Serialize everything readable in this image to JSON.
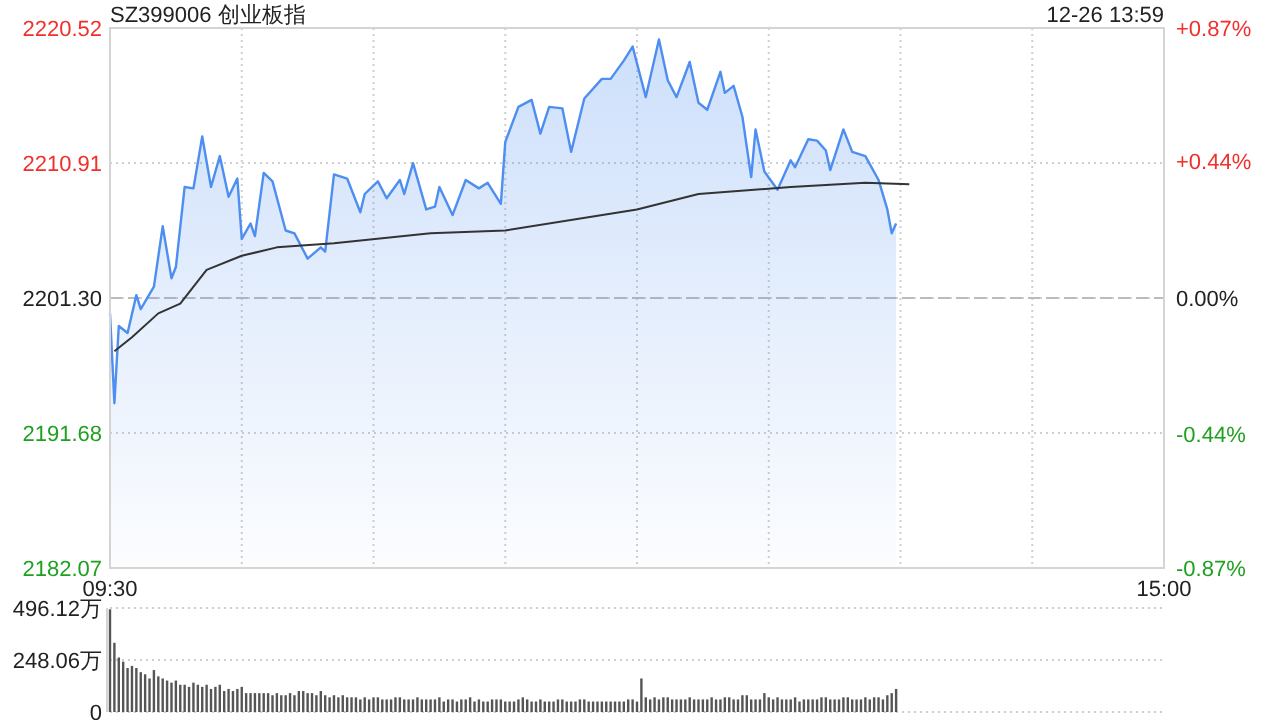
{
  "chart_data": [
    {
      "type": "area",
      "title": "SZ399006 创业板指",
      "annotations": [
        "12-26 13:59"
      ],
      "categories": [
        "09:30",
        null,
        null,
        null,
        null,
        null,
        null,
        null,
        null,
        null,
        null,
        null,
        null,
        null,
        null,
        null,
        null,
        null,
        null,
        null,
        null,
        null,
        null,
        null,
        null,
        null,
        null,
        null,
        null,
        null,
        null,
        null,
        null,
        null,
        null,
        null,
        null,
        null,
        null,
        null,
        null,
        null,
        null,
        null,
        null,
        null,
        null,
        null,
        null,
        null,
        null,
        null,
        null,
        null,
        null,
        null,
        null,
        null,
        null,
        null,
        null,
        null,
        null,
        null,
        null,
        null,
        null,
        null,
        null,
        null,
        null,
        null,
        null,
        null,
        null,
        null,
        null,
        null,
        null,
        null,
        null,
        null,
        null,
        null,
        null,
        null,
        null,
        null,
        null,
        null,
        null,
        null,
        null,
        null,
        null,
        null,
        null,
        null,
        null,
        null,
        null,
        null,
        null,
        null,
        null,
        null,
        null,
        null,
        null,
        null,
        null,
        null,
        null,
        null,
        null,
        null,
        null,
        null,
        null,
        null,
        null,
        null,
        null,
        null,
        null,
        null,
        null,
        null,
        null,
        null,
        null,
        null,
        null,
        null,
        null,
        null,
        null,
        null,
        null,
        null,
        null,
        null,
        null,
        null,
        null,
        null,
        null,
        null,
        null,
        null,
        null,
        null,
        null,
        null,
        null,
        null,
        null,
        null,
        null,
        null,
        null,
        null,
        null,
        null,
        null,
        null,
        null,
        null,
        null,
        null,
        null,
        null,
        null,
        null,
        null,
        null,
        null,
        null,
        null,
        null,
        null,
        null,
        null,
        null,
        null,
        null,
        null,
        null,
        null,
        null,
        null,
        null,
        null,
        null,
        null,
        null,
        null,
        null,
        null,
        null,
        null,
        null,
        null,
        null,
        null,
        null,
        null,
        null,
        null,
        null,
        null,
        null,
        null,
        null,
        null,
        null,
        null,
        null,
        null,
        null,
        null,
        null,
        null,
        null,
        null,
        null,
        null,
        null,
        null,
        null,
        null,
        null,
        null,
        null,
        null,
        null,
        null,
        null,
        null,
        null,
        "15:00"
      ],
      "ylim": [
        2182.07,
        2220.52
      ],
      "yticks": [
        2182.07,
        2191.68,
        {
          "value": 2201.3,
          "label": "2201.30"
        },
        2210.91,
        2220.52
      ],
      "y2lim": [
        -0.87,
        0.87
      ],
      "y2ticks": [
        {
          "value": -0.87,
          "label": "-0.87%"
        },
        {
          "value": -0.44,
          "label": "-0.44%"
        },
        {
          "value": 0,
          "label": "0.00%"
        },
        {
          "value": 0.44,
          "label": "+0.44%"
        },
        {
          "value": 0.87,
          "label": "+0.87%"
        }
      ],
      "grid": true,
      "ref_lines": [
        {
          "axis": "y",
          "value": 2201.3,
          "line_style": "dashed",
          "color": "#bbbbbb"
        }
      ],
      "series": [
        {
          "type": "area",
          "color": "#4d8ef0",
          "values": [
            2200.2,
            2193.8,
            2199.3,
            null,
            2198.8,
            null,
            2201.5,
            2200.5,
            null,
            null,
            2202.1,
            null,
            2206.4,
            null,
            2202.7,
            2203.5,
            null,
            2209.2,
            null,
            2209.1,
            null,
            2212.8,
            null,
            2209.2,
            null,
            2211.4,
            null,
            2208.5,
            null,
            2209.8,
            2205.5,
            null,
            2206.6,
            2205.7,
            null,
            2210.2,
            null,
            2209.6,
            null,
            null,
            2206.1,
            null,
            2205.9,
            null,
            null,
            2204.1,
            null,
            null,
            2204.9,
            2204.6,
            null,
            2210.1,
            null,
            null,
            2209.8,
            null,
            null,
            2207.4,
            2208.7,
            null,
            null,
            2209.6,
            null,
            2208.4,
            null,
            null,
            2209.7,
            2208.7,
            null,
            2210.9,
            null,
            null,
            2207.6,
            null,
            2207.8,
            2209.2,
            null,
            null,
            2207.2,
            null,
            null,
            2209.7,
            null,
            null,
            2209.1,
            null,
            2209.5,
            null,
            null,
            2208.0,
            2212.4,
            null,
            null,
            2214.9,
            null,
            null,
            2215.4,
            null,
            2213.0,
            null,
            2214.9,
            null,
            null,
            2214.8,
            null,
            2211.7,
            null,
            null,
            2215.5,
            null,
            null,
            null,
            2216.9,
            null,
            2216.9,
            null,
            null,
            2218.2,
            null,
            2219.2,
            null,
            null,
            2215.6,
            null,
            null,
            2219.7,
            null,
            2216.8,
            null,
            2215.6,
            null,
            null,
            2218.1,
            null,
            2215.2,
            null,
            2214.7,
            null,
            null,
            2217.4,
            2215.9,
            null,
            2216.4,
            null,
            2214.2,
            null,
            2209.9,
            2213.3,
            null,
            2210.3,
            null,
            null,
            2209.0,
            null,
            null,
            2211.1,
            2210.6,
            null,
            null,
            2212.6,
            null,
            2212.5,
            null,
            2211.8,
            2210.4,
            null,
            null,
            2213.3,
            null,
            2211.7,
            null,
            null,
            2211.4,
            null,
            null,
            2209.7,
            null,
            2207.6,
            2205.9,
            2206.6,
            null,
            null,
            null,
            null,
            null,
            null,
            null,
            null,
            null,
            null,
            null,
            null,
            null,
            null,
            null,
            null,
            null,
            null,
            null,
            null,
            null,
            null,
            null,
            null,
            null,
            null,
            null,
            null,
            null,
            null,
            null,
            null,
            null,
            null,
            null,
            null,
            null,
            null,
            null,
            null,
            null,
            null,
            null,
            null,
            null,
            null,
            null,
            null,
            null,
            null,
            null,
            null,
            null,
            null,
            null,
            null,
            null,
            null,
            null,
            null,
            null
          ]
        },
        {
          "type": "line",
          "color": "#333333",
          "values": [
            null,
            2197.5,
            null,
            null,
            null,
            2198.5,
            null,
            null,
            null,
            null,
            null,
            2200.2,
            null,
            null,
            null,
            null,
            2200.9,
            null,
            null,
            null,
            null,
            null,
            2203.3,
            null,
            null,
            null,
            null,
            null,
            null,
            null,
            2204.3,
            null,
            null,
            null,
            null,
            null,
            null,
            null,
            2204.9,
            null,
            null,
            null,
            null,
            null,
            null,
            null,
            null,
            null,
            null,
            null,
            null,
            2205.2,
            null,
            null,
            null,
            null,
            null,
            null,
            null,
            null,
            null,
            null,
            null,
            null,
            null,
            null,
            null,
            null,
            null,
            null,
            null,
            null,
            null,
            2205.9,
            null,
            null,
            null,
            null,
            null,
            null,
            null,
            null,
            null,
            null,
            null,
            null,
            null,
            null,
            null,
            null,
            2206.1,
            null,
            null,
            null,
            null,
            null,
            null,
            null,
            null,
            null,
            null,
            null,
            null,
            null,
            null,
            null,
            null,
            null,
            null,
            null,
            null,
            null,
            null,
            null,
            null,
            null,
            null,
            null,
            null,
            null,
            2207.6,
            null,
            null,
            null,
            null,
            null,
            null,
            null,
            null,
            null,
            null,
            null,
            null,
            null,
            2208.7,
            null,
            null,
            null,
            null,
            null,
            null,
            null,
            null,
            null,
            null,
            null,
            null,
            null,
            null,
            null,
            null,
            null,
            null,
            null,
            null,
            2209.2,
            null,
            null,
            null,
            null,
            null,
            null,
            null,
            null,
            null,
            null,
            null,
            null,
            null,
            null,
            null,
            null,
            2209.5,
            null,
            null,
            null,
            null,
            null,
            null,
            null,
            null,
            null,
            2209.4,
            null,
            null,
            null,
            null,
            null,
            null,
            null,
            null,
            null,
            null,
            null,
            null,
            null,
            null,
            null,
            null,
            null,
            null,
            null,
            null,
            null,
            null,
            null,
            null,
            null,
            null,
            null,
            null,
            null,
            null,
            null,
            null,
            null,
            null,
            null,
            null,
            null,
            null,
            null,
            null,
            null,
            null,
            null,
            null,
            null,
            null,
            null,
            null,
            null,
            null,
            null,
            null,
            null,
            null,
            null,
            null,
            null,
            null
          ]
        }
      ]
    },
    {
      "type": "bar",
      "color": "#555555",
      "tick_labels": "y",
      "grid": "y",
      "ylim": [
        0,
        496.12
      ],
      "yticks": [
        {
          "value": 0,
          "label": "0"
        },
        {
          "value": 248.06,
          "label": "248.06万"
        },
        {
          "value": 496.12,
          "label": "496.12万"
        }
      ],
      "categories": [
        null,
        null,
        null,
        null,
        null,
        null,
        null,
        null,
        null,
        null,
        null,
        null,
        null,
        null,
        null,
        null,
        null,
        null,
        null,
        null,
        null,
        null,
        null,
        null,
        null,
        null,
        null,
        null,
        null,
        null,
        null,
        null,
        null,
        null,
        null,
        null,
        null,
        null,
        null,
        null,
        null,
        null,
        null,
        null,
        null,
        null,
        null,
        null,
        null,
        null,
        null,
        null,
        null,
        null,
        null,
        null,
        null,
        null,
        null,
        null,
        null,
        null,
        null,
        null,
        null,
        null,
        null,
        null,
        null,
        null,
        null,
        null,
        null,
        null,
        null,
        null,
        null,
        null,
        null,
        null,
        null,
        null,
        null,
        null,
        null,
        null,
        null,
        null,
        null,
        null,
        null,
        null,
        null,
        null,
        null,
        null,
        null,
        null,
        null,
        null,
        null,
        null,
        null,
        null,
        null,
        null,
        null,
        null,
        null,
        null,
        null,
        null,
        null,
        null,
        null,
        null,
        null,
        null,
        null,
        null,
        null,
        null,
        null,
        null,
        null,
        null,
        null,
        null,
        null,
        null,
        null,
        null,
        null,
        null,
        null,
        null,
        null,
        null,
        null,
        null,
        null,
        null,
        null,
        null,
        null,
        null,
        null,
        null,
        null,
        null,
        null,
        null,
        null,
        null,
        null,
        null,
        null,
        null,
        null,
        null,
        null,
        null,
        null,
        null,
        null,
        null,
        null,
        null,
        null,
        null,
        null,
        null,
        null,
        null,
        null,
        null,
        null,
        null,
        null,
        null,
        null,
        null,
        null,
        null,
        null,
        null,
        null,
        null,
        null,
        null,
        null,
        null,
        null,
        null,
        null,
        null,
        null,
        null,
        null,
        null,
        null,
        null,
        null,
        null,
        null,
        null,
        null,
        null,
        null,
        null,
        null,
        null,
        null,
        null,
        null,
        null,
        null,
        null,
        null,
        null,
        null,
        null,
        null,
        null,
        null,
        null,
        null,
        null,
        null,
        null,
        null,
        null,
        null,
        null,
        null,
        null,
        null,
        null,
        null,
        null,
        null
      ],
      "values": [
        490,
        330,
        260,
        240,
        210,
        220,
        210,
        190,
        180,
        160,
        200,
        170,
        160,
        150,
        140,
        150,
        130,
        130,
        120,
        140,
        130,
        120,
        130,
        110,
        120,
        130,
        100,
        110,
        100,
        110,
        120,
        90,
        90,
        90,
        90,
        90,
        90,
        80,
        90,
        80,
        80,
        90,
        80,
        100,
        100,
        90,
        90,
        80,
        100,
        80,
        70,
        80,
        70,
        80,
        70,
        70,
        70,
        60,
        70,
        60,
        70,
        70,
        60,
        60,
        60,
        70,
        70,
        60,
        60,
        60,
        70,
        60,
        60,
        60,
        60,
        70,
        50,
        60,
        60,
        50,
        60,
        60,
        70,
        50,
        60,
        50,
        50,
        60,
        60,
        60,
        50,
        50,
        50,
        60,
        70,
        60,
        50,
        50,
        60,
        50,
        50,
        50,
        60,
        60,
        50,
        50,
        50,
        60,
        60,
        50,
        50,
        50,
        50,
        50,
        50,
        50,
        50,
        50,
        60,
        60,
        50,
        160,
        70,
        60,
        70,
        60,
        70,
        70,
        60,
        60,
        60,
        60,
        70,
        60,
        60,
        60,
        60,
        70,
        60,
        60,
        70,
        70,
        60,
        60,
        80,
        80,
        60,
        60,
        60,
        90,
        70,
        60,
        70,
        60,
        60,
        60,
        70,
        50,
        60,
        60,
        60,
        60,
        70,
        70,
        60,
        60,
        60,
        70,
        70,
        60,
        60,
        60,
        70,
        60,
        70,
        70,
        60,
        80,
        90,
        110,
        null,
        null,
        null,
        null,
        null,
        null,
        null,
        null,
        null,
        null,
        null,
        null,
        null,
        null,
        null,
        null,
        null,
        null,
        null,
        null,
        null,
        null,
        null,
        null,
        null,
        null,
        null,
        null,
        null,
        null,
        null,
        null,
        null,
        null,
        null,
        null,
        null,
        null,
        null,
        null,
        null,
        null,
        null,
        null,
        null,
        null,
        null,
        null,
        null,
        null,
        null,
        null,
        null,
        null,
        null,
        null,
        null,
        null,
        null,
        null,
        null
      ]
    }
  ]
}
